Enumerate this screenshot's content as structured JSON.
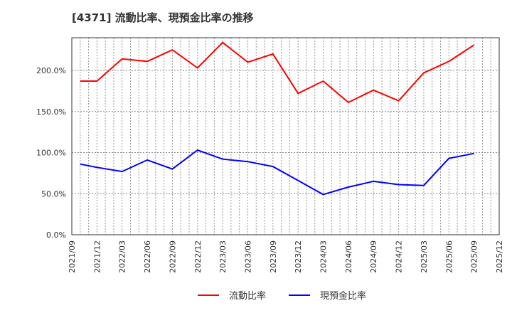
{
  "title": "[4371]  流動比率、現預金比率の推移",
  "colors": {
    "current_ratio": "#ff0000",
    "cash_ratio": "#0000ff",
    "grid": "#888888",
    "frame": "#333333"
  },
  "chart_data": {
    "type": "line",
    "title": "[4371]  流動比率、現預金比率の推移",
    "xlabel": "",
    "ylabel": "",
    "ylim": [
      0,
      240
    ],
    "y_ticks": [
      "0.0%",
      "50.0%",
      "100.0%",
      "150.0%",
      "200.0%"
    ],
    "x_ticks": [
      "2021/09",
      "2021/12",
      "2022/03",
      "2022/06",
      "2022/09",
      "2022/12",
      "2023/03",
      "2023/06",
      "2023/09",
      "2023/12",
      "2024/03",
      "2024/06",
      "2024/09",
      "2024/12",
      "2025/03",
      "2025/06",
      "2025/09",
      "2025/12"
    ],
    "grid": true,
    "legend_position": "bottom",
    "x": [
      "2021/10",
      "2021/12",
      "2022/03",
      "2022/06",
      "2022/09",
      "2022/12",
      "2023/03",
      "2023/06",
      "2023/09",
      "2023/12",
      "2024/03",
      "2024/06",
      "2024/09",
      "2024/12",
      "2025/03",
      "2025/06",
      "2025/09"
    ],
    "series": [
      {
        "name": "流動比率",
        "color": "#ff0000",
        "values": [
          187,
          187,
          214,
          211,
          225,
          203,
          234,
          210,
          220,
          172,
          187,
          161,
          176,
          163,
          197,
          211,
          231
        ]
      },
      {
        "name": "現預金比率",
        "color": "#0000ff",
        "values": [
          86,
          82,
          77,
          91,
          80,
          103,
          92,
          89,
          83,
          66,
          49,
          58,
          65,
          61,
          60,
          93,
          99
        ]
      }
    ]
  },
  "legend": [
    {
      "label": "流動比率",
      "color": "#ff0000"
    },
    {
      "label": "現預金比率",
      "color": "#0000ff"
    }
  ]
}
